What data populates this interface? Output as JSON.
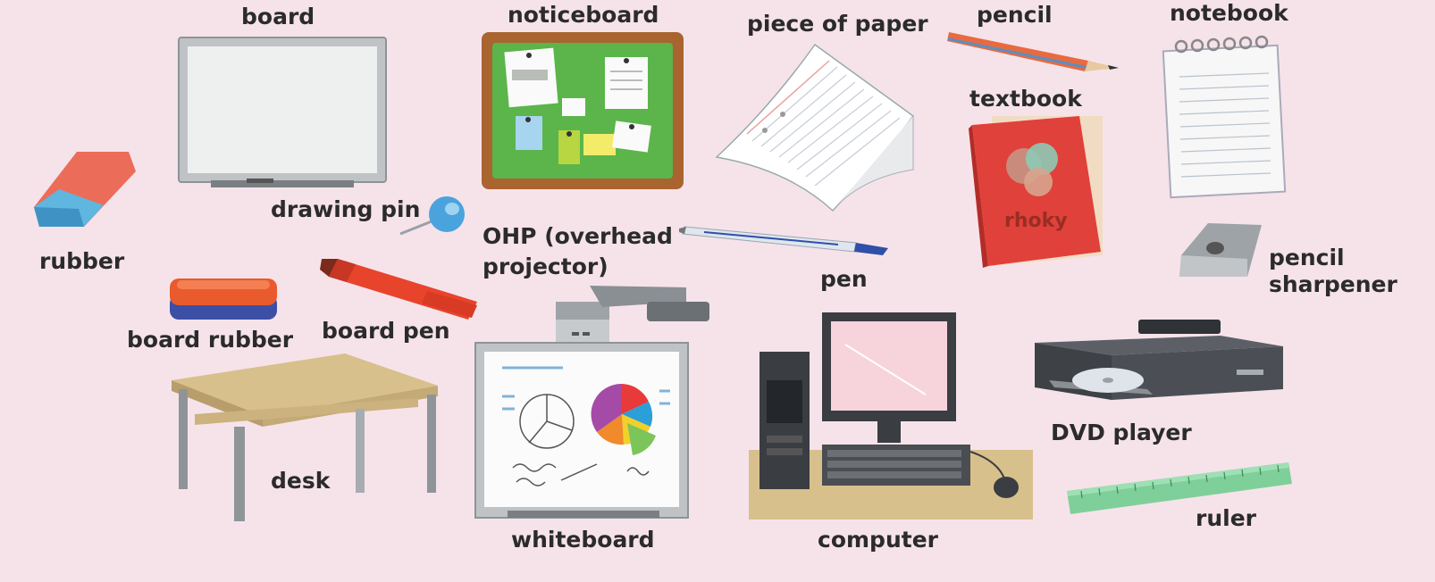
{
  "labels": {
    "board": "board",
    "noticeboard": "noticeboard",
    "piece_of_paper": "piece of paper",
    "pencil": "pencil",
    "notebook": "notebook",
    "textbook": "textbook",
    "drawing_pin": "drawing pin",
    "rubber": "rubber",
    "ohp_line1": "OHP (overhead",
    "ohp_line2": "projector)",
    "pen": "pen",
    "pencil_sharpener_line1": "pencil",
    "pencil_sharpener_line2": "sharpener",
    "board_rubber": "board rubber",
    "board_pen": "board pen",
    "desk": "desk",
    "whiteboard": "whiteboard",
    "computer": "computer",
    "dvd_player": "DVD player",
    "ruler": "ruler"
  },
  "icons": {
    "board": "whiteboard-frame-icon",
    "noticeboard": "cork-noticeboard-icon",
    "paper": "sheet-of-paper-icon",
    "pencil": "pencil-icon",
    "notebook": "spiral-notebook-icon",
    "textbook": "red-textbook-icon",
    "pin": "drawing-pin-icon",
    "rubber": "eraser-icon",
    "pen": "ballpoint-pen-icon",
    "sharpener": "pencil-sharpener-icon",
    "board_rubber": "board-eraser-icon",
    "board_pen": "marker-pen-icon",
    "desk": "desk-icon",
    "whiteboard": "whiteboard-with-ohp-icon",
    "computer": "desktop-computer-icon",
    "dvd": "dvd-player-icon",
    "ruler": "ruler-icon"
  },
  "colors": {
    "background": "#f6e3ea",
    "text": "#2b2b2b",
    "notice_green": "#5bb54a",
    "notice_frame": "#a9642f",
    "book_red": "#e0413a",
    "pen_red": "#e8442c",
    "ruler_green": "#7fcf9a",
    "desk_top": "#d8c08c"
  }
}
